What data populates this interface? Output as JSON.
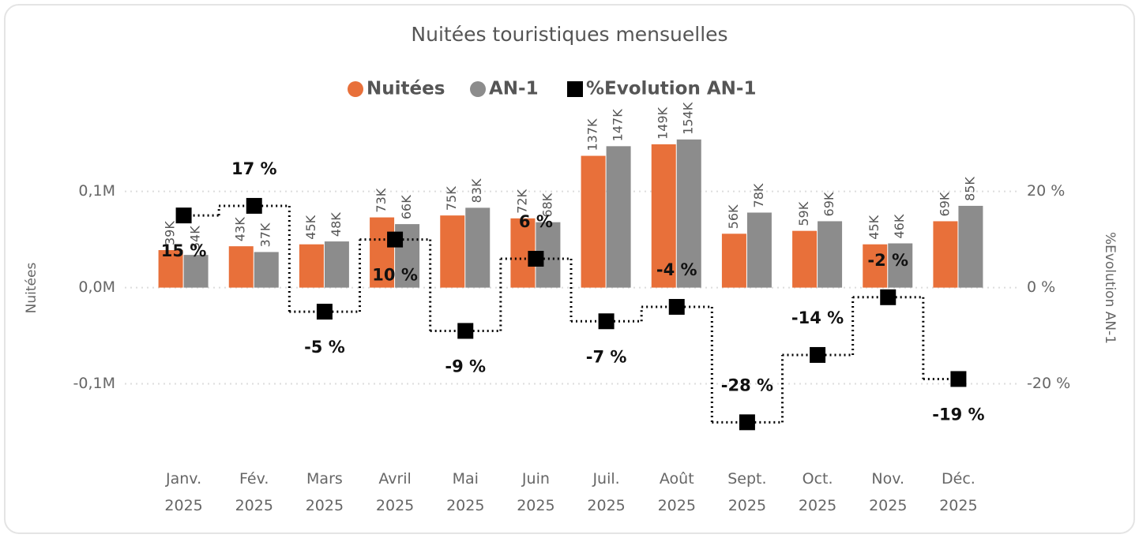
{
  "chart_data": {
    "type": "bar",
    "title": "Nuitées touristiques mensuelles",
    "categories": [
      "Janv. 2025",
      "Fév. 2025",
      "Mars 2025",
      "Avril 2025",
      "Mai 2025",
      "Juin 2025",
      "Juil. 2025",
      "Août 2025",
      "Sept. 2025",
      "Oct. 2025",
      "Nov. 2025",
      "Déc. 2025"
    ],
    "series": [
      {
        "name": "Nuitées",
        "color": "#e8703a",
        "values": [
          39000,
          43000,
          45000,
          73000,
          75000,
          72000,
          137000,
          149000,
          56000,
          59000,
          45000,
          69000
        ],
        "value_labels": [
          "39K",
          "43K",
          "45K",
          "73K",
          "75K",
          "72K",
          "137K",
          "149K",
          "56K",
          "59K",
          "45K",
          "69K"
        ]
      },
      {
        "name": "AN-1",
        "color": "#8c8c8c",
        "values": [
          34000,
          37000,
          48000,
          66000,
          83000,
          68000,
          147000,
          154000,
          78000,
          69000,
          46000,
          85000
        ],
        "value_labels": [
          "34K",
          "37K",
          "48K",
          "66K",
          "83K",
          "68K",
          "147K",
          "154K",
          "78K",
          "69K",
          "46K",
          "85K"
        ]
      },
      {
        "name": "%Evolution AN-1",
        "type": "line",
        "color": "#000000",
        "axis": "y2",
        "values": [
          15,
          17,
          -5,
          10,
          -9,
          6,
          -7,
          -4,
          -28,
          -14,
          -2,
          -19
        ],
        "value_labels": [
          "15 %",
          "17 %",
          "-5 %",
          "10 %",
          "-9 %",
          "6 %",
          "-7 %",
          "-4 %",
          "-28 %",
          "-14 %",
          "-2 %",
          "-19 %"
        ]
      }
    ],
    "ylabel": "Nuitées",
    "y2label": "%Evolution AN-1",
    "ylim": [
      -175000,
      185000
    ],
    "yticks": [
      {
        "value": -100000,
        "label": "-0,1M"
      },
      {
        "value": 0,
        "label": "0,0M"
      },
      {
        "value": 100000,
        "label": "0,1M"
      }
    ],
    "y2lim": [
      -35,
      37
    ],
    "y2ticks": [
      {
        "value": -20,
        "label": "-20 %"
      },
      {
        "value": 0,
        "label": "0 %"
      },
      {
        "value": 20,
        "label": "20 %"
      }
    ],
    "grid": true
  }
}
